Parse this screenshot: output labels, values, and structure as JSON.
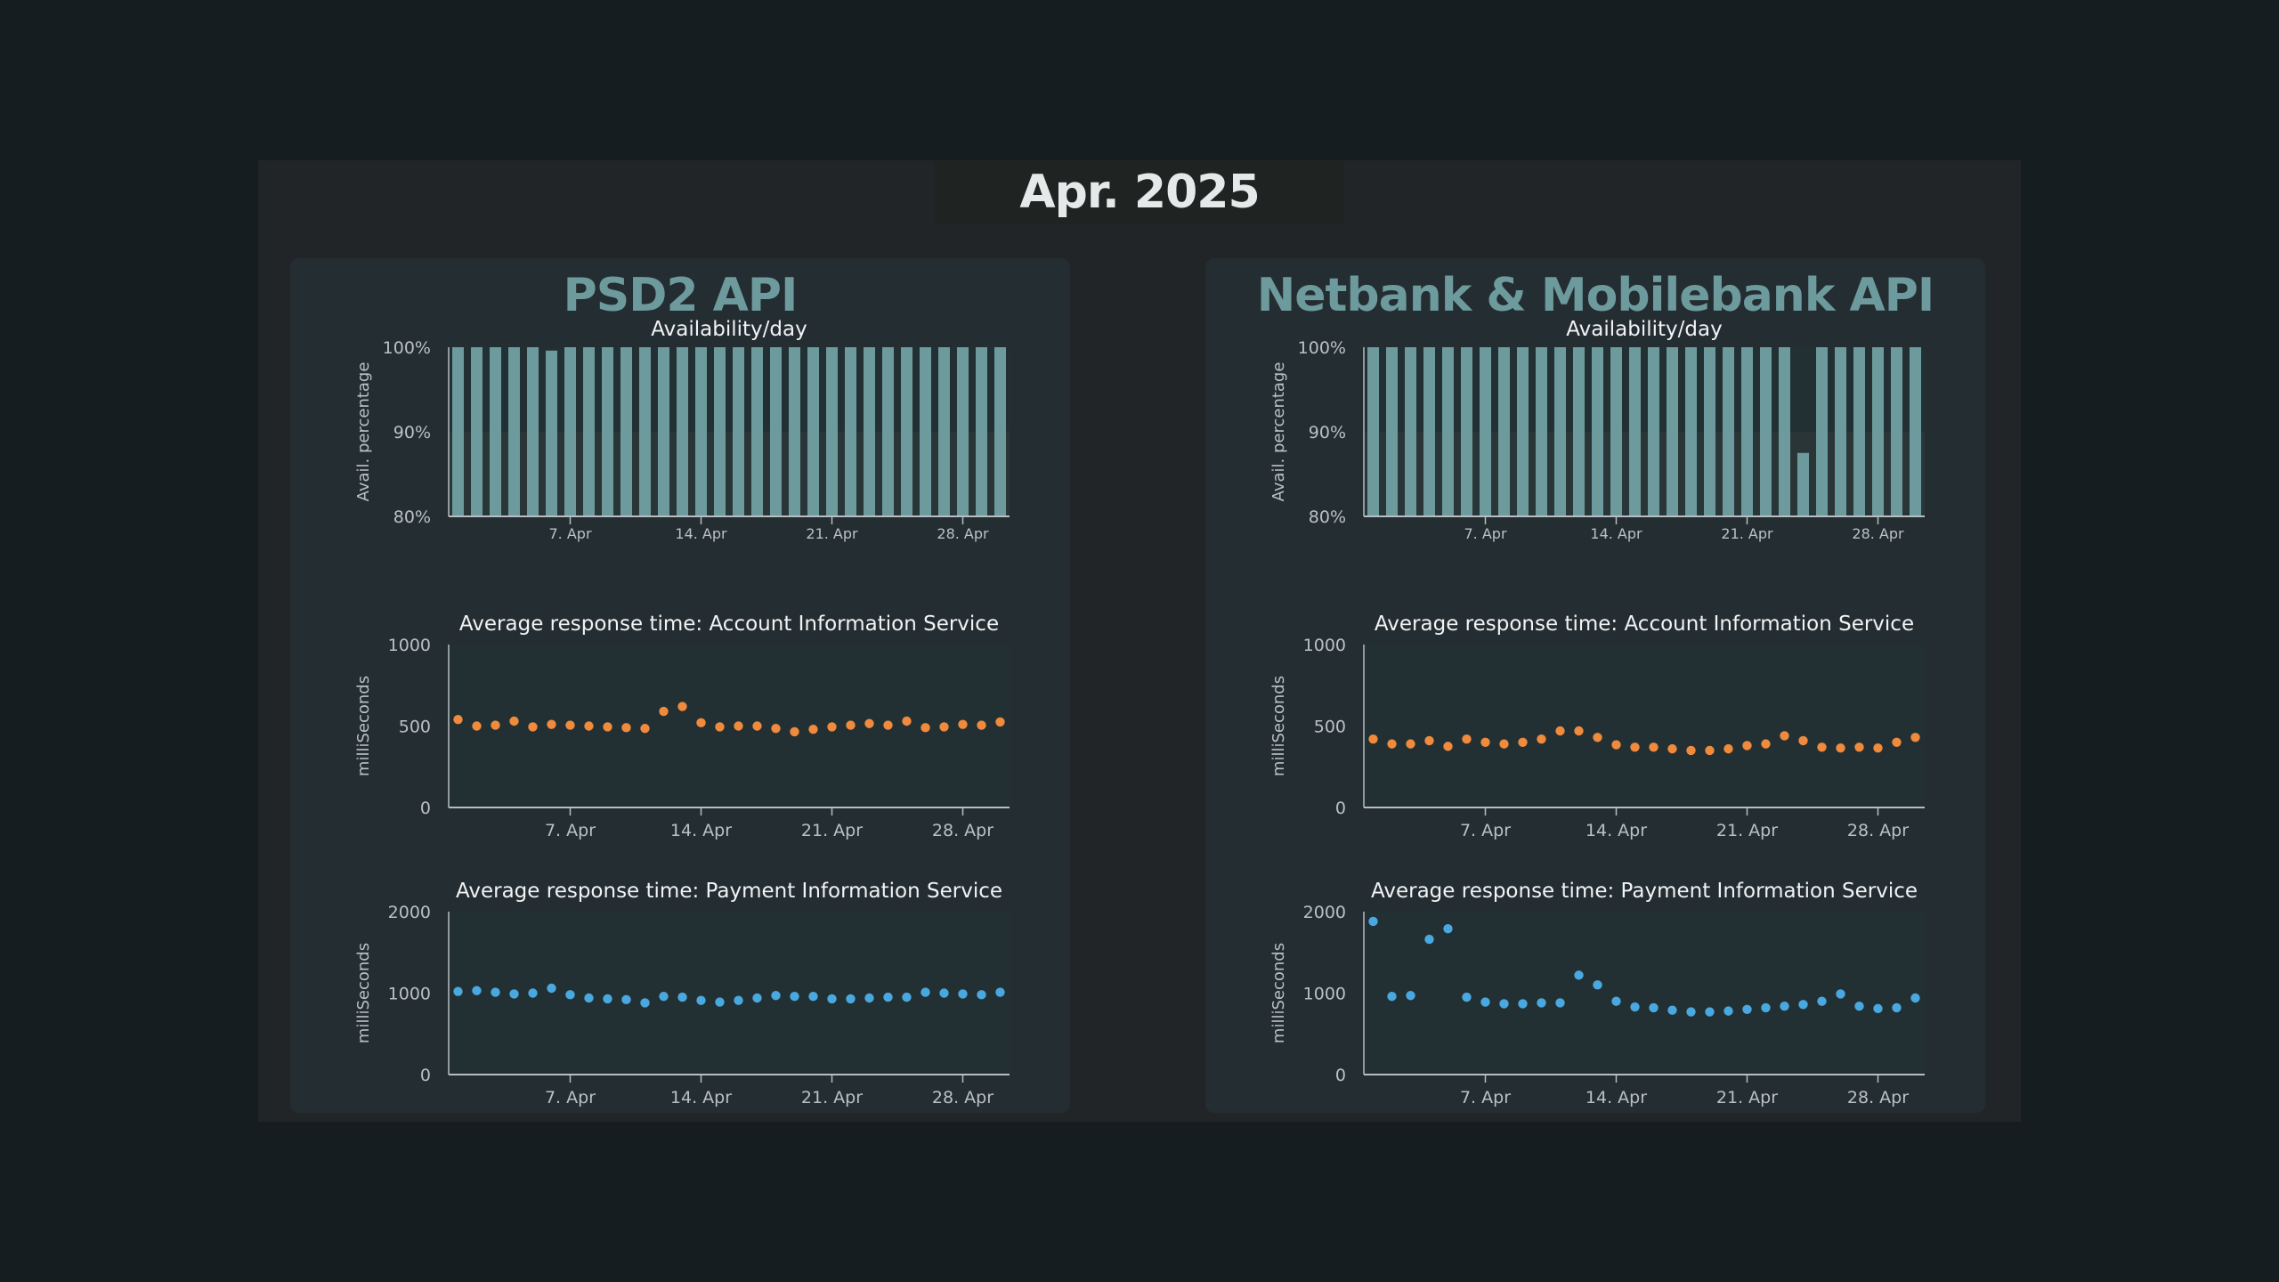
{
  "month": "Apr. 2025",
  "panels": [
    {
      "title": "PSD2 API",
      "charts": [
        {
          "type": "bar",
          "title": "Availability/day",
          "ylabel": "Avail. percentage",
          "yticks": [
            "100%",
            "90%",
            "80%"
          ],
          "ylim": [
            80,
            100
          ],
          "xticks": [
            "7. Apr",
            "14. Apr",
            "21. Apr",
            "28. Apr"
          ],
          "x": [
            1,
            2,
            3,
            4,
            5,
            6,
            7,
            8,
            9,
            10,
            11,
            12,
            13,
            14,
            15,
            16,
            17,
            18,
            19,
            20,
            21,
            22,
            23,
            24,
            25,
            26,
            27,
            28,
            29,
            30
          ],
          "values": [
            100,
            100,
            100,
            100,
            100,
            99.6,
            100,
            100,
            100,
            100,
            100,
            100,
            100,
            100,
            100,
            100,
            100,
            100,
            100,
            100,
            100,
            100,
            100,
            100,
            100,
            100,
            100,
            100,
            100,
            100
          ]
        },
        {
          "type": "scatter",
          "title": "Average response time: Account Information Service",
          "ylabel": "milliSeconds",
          "yticks": [
            "1000",
            "500",
            "0"
          ],
          "ylim": [
            0,
            1000
          ],
          "xticks": [
            "7. Apr",
            "14. Apr",
            "21. Apr",
            "28. Apr"
          ],
          "color": "#f08a3c",
          "x": [
            1,
            2,
            3,
            4,
            5,
            6,
            7,
            8,
            9,
            10,
            11,
            12,
            13,
            14,
            15,
            16,
            17,
            18,
            19,
            20,
            21,
            22,
            23,
            24,
            25,
            26,
            27,
            28,
            29,
            30
          ],
          "values": [
            540,
            500,
            505,
            530,
            495,
            510,
            505,
            500,
            495,
            490,
            485,
            590,
            620,
            520,
            495,
            500,
            500,
            485,
            465,
            480,
            495,
            505,
            515,
            505,
            530,
            490,
            495,
            510,
            505,
            525
          ]
        },
        {
          "type": "scatter",
          "title": "Average response time: Payment Information Service",
          "ylabel": "milliSeconds",
          "yticks": [
            "2000",
            "1000",
            "0"
          ],
          "ylim": [
            0,
            2000
          ],
          "xticks": [
            "7. Apr",
            "14. Apr",
            "21. Apr",
            "28. Apr"
          ],
          "color": "#4aa8e0",
          "x": [
            1,
            2,
            3,
            4,
            5,
            6,
            7,
            8,
            9,
            10,
            11,
            12,
            13,
            14,
            15,
            16,
            17,
            18,
            19,
            20,
            21,
            22,
            23,
            24,
            25,
            26,
            27,
            28,
            29,
            30
          ],
          "values": [
            1020,
            1030,
            1010,
            990,
            1000,
            1060,
            980,
            940,
            930,
            920,
            880,
            960,
            950,
            910,
            890,
            910,
            940,
            970,
            960,
            960,
            930,
            930,
            940,
            950,
            950,
            1010,
            1000,
            990,
            980,
            1010
          ]
        }
      ]
    },
    {
      "title": "Netbank & Mobilebank API",
      "charts": [
        {
          "type": "bar",
          "title": "Availability/day",
          "ylabel": "Avail. percentage",
          "yticks": [
            "100%",
            "90%",
            "80%"
          ],
          "ylim": [
            80,
            100
          ],
          "xticks": [
            "7. Apr",
            "14. Apr",
            "21. Apr",
            "28. Apr"
          ],
          "x": [
            1,
            2,
            3,
            4,
            5,
            6,
            7,
            8,
            9,
            10,
            11,
            12,
            13,
            14,
            15,
            16,
            17,
            18,
            19,
            20,
            21,
            22,
            23,
            24,
            25,
            26,
            27,
            28,
            29,
            30
          ],
          "values": [
            100,
            100,
            100,
            100,
            100,
            100,
            100,
            100,
            100,
            100,
            100,
            100,
            100,
            100,
            100,
            100,
            100,
            100,
            100,
            100,
            100,
            100,
            100,
            87.5,
            100,
            100,
            100,
            100,
            100,
            100
          ]
        },
        {
          "type": "scatter",
          "title": "Average response time: Account Information Service",
          "ylabel": "milliSeconds",
          "yticks": [
            "1000",
            "500",
            "0"
          ],
          "ylim": [
            0,
            1000
          ],
          "xticks": [
            "7. Apr",
            "14. Apr",
            "21. Apr",
            "28. Apr"
          ],
          "color": "#f08a3c",
          "x": [
            1,
            2,
            3,
            4,
            5,
            6,
            7,
            8,
            9,
            10,
            11,
            12,
            13,
            14,
            15,
            16,
            17,
            18,
            19,
            20,
            21,
            22,
            23,
            24,
            25,
            26,
            27,
            28,
            29,
            30
          ],
          "values": [
            420,
            390,
            390,
            410,
            375,
            420,
            400,
            390,
            400,
            420,
            470,
            470,
            430,
            385,
            370,
            370,
            360,
            350,
            350,
            360,
            380,
            390,
            440,
            410,
            370,
            365,
            370,
            365,
            400,
            430
          ]
        },
        {
          "type": "scatter",
          "title": "Average response time: Payment Information Service",
          "ylabel": "milliSeconds",
          "yticks": [
            "2000",
            "1000",
            "0"
          ],
          "ylim": [
            0,
            2000
          ],
          "xticks": [
            "7. Apr",
            "14. Apr",
            "21. Apr",
            "28. Apr"
          ],
          "color": "#4aa8e0",
          "x": [
            1,
            2,
            3,
            4,
            5,
            6,
            7,
            8,
            9,
            10,
            11,
            12,
            13,
            14,
            15,
            16,
            17,
            18,
            19,
            20,
            21,
            22,
            23,
            24,
            25,
            26,
            27,
            28,
            29,
            30
          ],
          "values": [
            1880,
            960,
            970,
            1660,
            1790,
            950,
            890,
            870,
            870,
            880,
            880,
            1220,
            1100,
            900,
            830,
            820,
            790,
            770,
            770,
            780,
            800,
            820,
            840,
            860,
            900,
            990,
            840,
            810,
            820,
            940
          ]
        }
      ]
    }
  ]
}
